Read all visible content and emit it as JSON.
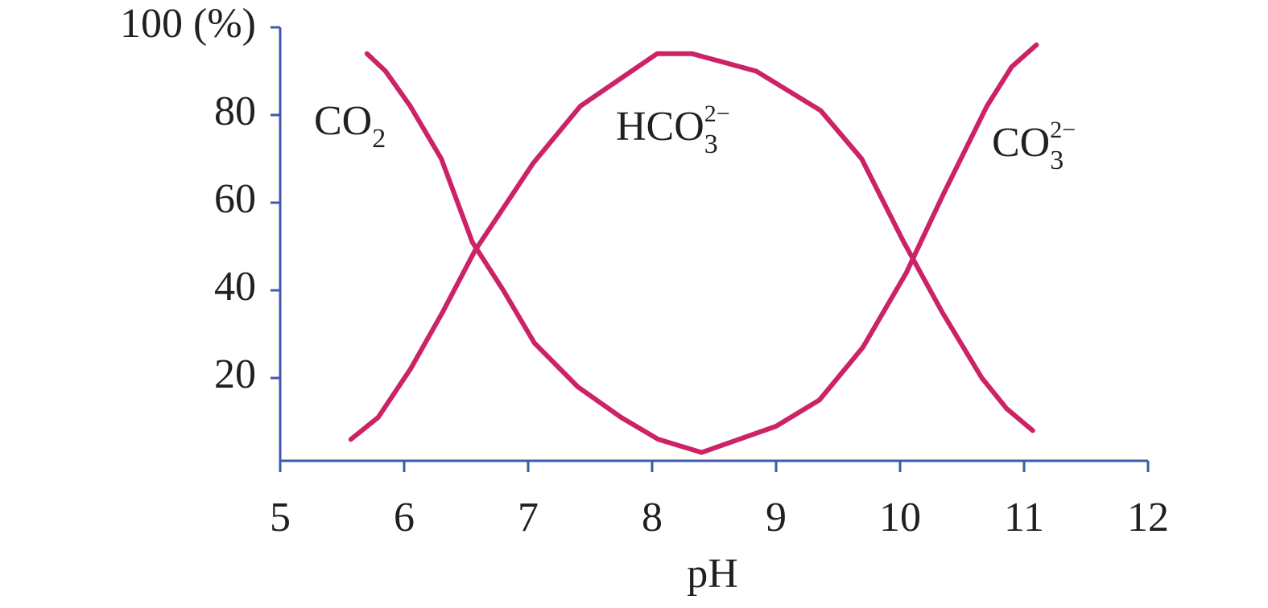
{
  "chart_data": {
    "type": "line",
    "xlabel": "pH",
    "xlim": [
      5,
      12
    ],
    "xticks": [
      5,
      6,
      7,
      8,
      9,
      10,
      11,
      12
    ],
    "ylim": [
      0,
      100
    ],
    "yticks": [
      20,
      40,
      60,
      80,
      {
        "value": 100,
        "label": "100 (%)"
      }
    ],
    "axis_color": "#3d5ba9",
    "series": [
      {
        "color": "#cc2266",
        "x": [
          5.7,
          5.85,
          6.05,
          6.3,
          6.55,
          6.8,
          7.05,
          7.4,
          7.75,
          8.05,
          8.4,
          9,
          9.35,
          9.7,
          10.05,
          10.35,
          10.7,
          10.9,
          11.1
        ],
        "values": [
          94,
          90,
          82,
          70,
          51,
          40,
          28,
          18,
          11,
          6,
          3,
          9,
          15,
          27,
          44,
          62,
          82,
          91,
          96
        ]
      },
      {
        "color": "#cc2266",
        "x": [
          5.57,
          5.79,
          6.05,
          6.31,
          6.57,
          7.04,
          7.42,
          8.04,
          8.32,
          8.84,
          9.36,
          9.69,
          10.03,
          10.34,
          10.66,
          10.86,
          11.07
        ],
        "values": [
          6,
          11,
          22,
          35,
          49,
          69,
          82,
          94,
          94,
          90,
          81,
          70,
          51,
          35,
          20,
          13,
          8
        ]
      }
    ],
    "annotations": [
      {
        "text": "CO",
        "sub": "2"
      },
      {
        "text": "HCO",
        "sub": "3",
        "sup": "2−"
      },
      {
        "text": "CO",
        "sub": "3",
        "sup": "2−"
      }
    ]
  }
}
